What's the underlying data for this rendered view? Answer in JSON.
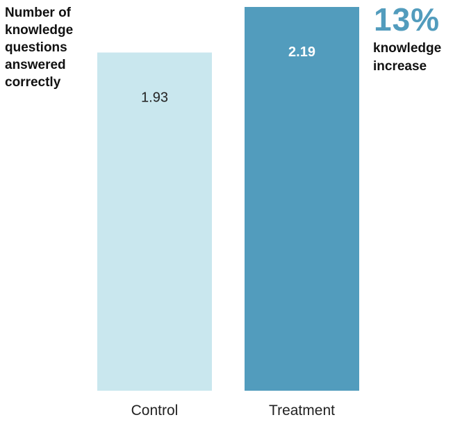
{
  "chart_data": {
    "type": "bar",
    "title": "",
    "xlabel": "",
    "ylabel": "Number of\nknowledge\nquestions\nanswered\ncorrectly",
    "categories": [
      "Control",
      "Treatment"
    ],
    "values": [
      1.93,
      2.19
    ],
    "value_labels": [
      "1.93",
      "2.19"
    ],
    "ylim": [
      0,
      2.19
    ],
    "grid": false,
    "colors": {
      "bars": [
        "#c9e7ee",
        "#529cbd"
      ],
      "value_labels": [
        "#222222",
        "#ffffff"
      ],
      "accent": "#529cbd"
    }
  },
  "annotation": {
    "percent": "13%",
    "text": "knowledge\nincrease"
  }
}
